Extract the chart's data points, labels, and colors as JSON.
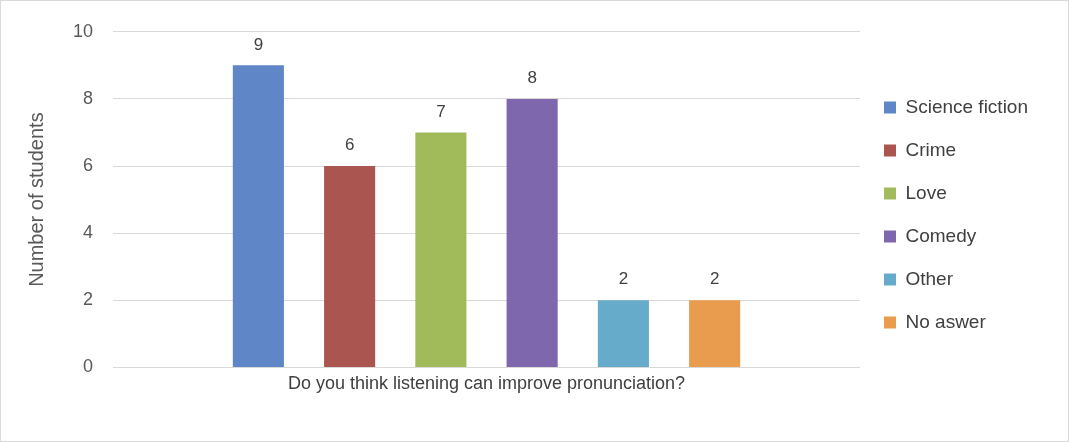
{
  "chart_data": {
    "type": "bar",
    "ylabel": "Number of students",
    "categories": [
      "Do you think listening can improve pronunciation?"
    ],
    "series": [
      {
        "name": "Science fiction",
        "color": "#5f86c6",
        "values": [
          9
        ]
      },
      {
        "name": "Crime",
        "color": "#ab5551",
        "values": [
          6
        ]
      },
      {
        "name": "Love",
        "color": "#a2bb5a",
        "values": [
          7
        ]
      },
      {
        "name": "Comedy",
        "color": "#7e67ad",
        "values": [
          8
        ]
      },
      {
        "name": "Other",
        "color": "#66abc9",
        "values": [
          2
        ]
      },
      {
        "name": "No aswer",
        "color": "#e99c4d",
        "values": [
          2
        ]
      }
    ],
    "ylim": [
      0,
      10
    ],
    "yticks": [
      0,
      2,
      4,
      6,
      8,
      10
    ],
    "grid": "y",
    "legend": "right",
    "data_labels": true
  }
}
